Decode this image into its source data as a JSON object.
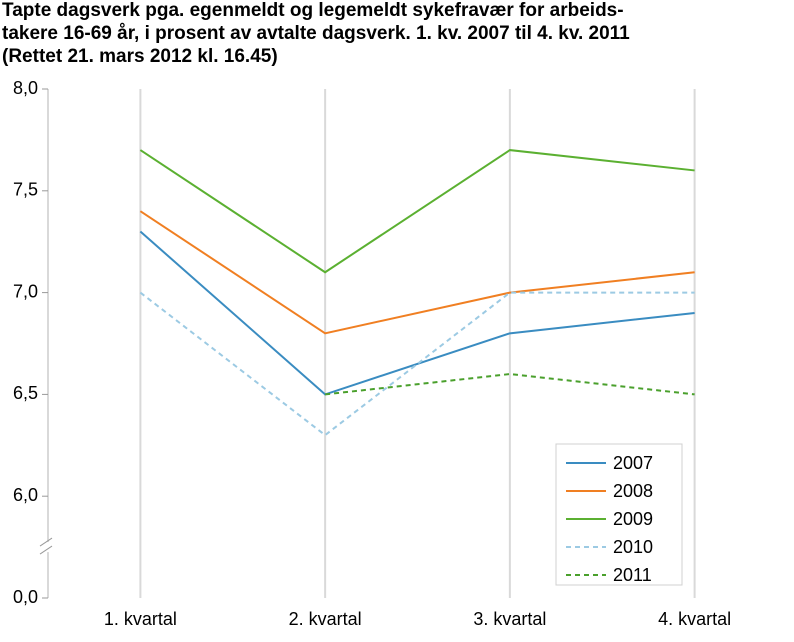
{
  "chart_data": {
    "type": "line",
    "title": [
      "Tapte dagsverk pga. egenmeldt og legemeldt sykefravær for arbeids-",
      "takere 16-69 år, i prosent av avtalte dagsverk. 1. kv. 2007 til 4. kv. 2011",
      "(Rettet 21. mars 2012 kl. 16.45)"
    ],
    "categories": [
      "1. kvartal",
      "2. kvartal",
      "3. kvartal",
      "4. kvartal"
    ],
    "series": [
      {
        "name": "2007",
        "color": "#3a8cc1",
        "dashed": false,
        "values": [
          7.3,
          6.5,
          6.8,
          6.9
        ]
      },
      {
        "name": "2008",
        "color": "#f07f22",
        "dashed": false,
        "values": [
          7.4,
          6.8,
          7.0,
          7.1
        ]
      },
      {
        "name": "2009",
        "color": "#5bb031",
        "dashed": false,
        "values": [
          7.7,
          7.1,
          7.7,
          7.6
        ]
      },
      {
        "name": "2010",
        "color": "#9ccae3",
        "dashed": true,
        "values": [
          7.0,
          6.3,
          7.0,
          7.0
        ]
      },
      {
        "name": "2011",
        "color": "#4aa02c",
        "dashed": true,
        "values": [
          null,
          6.5,
          6.6,
          6.5
        ]
      }
    ],
    "ylim": [
      0,
      8
    ],
    "yticks": [
      {
        "value": 0,
        "label": "0,0"
      },
      {
        "value": 6,
        "label": "6,0"
      },
      {
        "value": 6.5,
        "label": "6,5"
      },
      {
        "value": 7,
        "label": "7,0"
      },
      {
        "value": 7.5,
        "label": "7,5"
      },
      {
        "value": 8,
        "label": "8,0"
      }
    ],
    "grid": true,
    "legend": "lower right"
  }
}
